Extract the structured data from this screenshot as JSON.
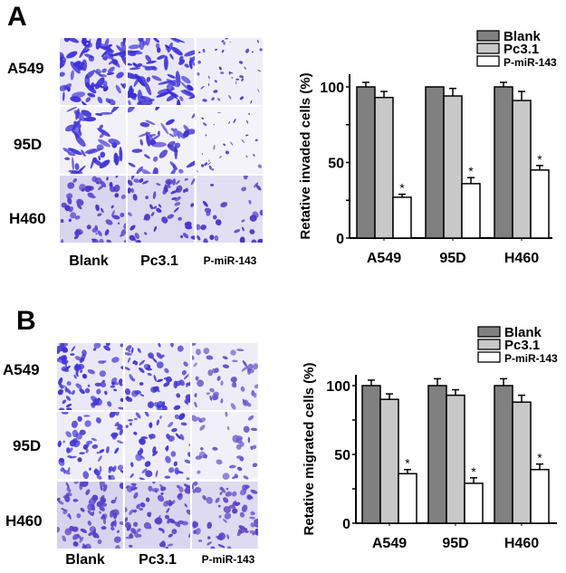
{
  "panels": [
    {
      "letter": "A",
      "row_labels": [
        "A549",
        "95D",
        "H460"
      ],
      "col_labels": [
        "Blank",
        "Pc3.1",
        "P-miR-143"
      ],
      "micrographs": [
        [
          {
            "bg": "#e9e7f6",
            "density": 0.85,
            "blob": "#3b2fd6",
            "shape": "elongated"
          },
          {
            "bg": "#e9e7f6",
            "density": 0.8,
            "blob": "#3b2fd6",
            "shape": "elongated"
          },
          {
            "bg": "#f0eef8",
            "density": 0.35,
            "blob": "#4a38c8",
            "shape": "small"
          }
        ],
        [
          {
            "bg": "#f2f1f8",
            "density": 0.5,
            "blob": "#4337d4",
            "shape": "elongated"
          },
          {
            "bg": "#f2f1f8",
            "density": 0.45,
            "blob": "#4337d4",
            "shape": "elongated"
          },
          {
            "bg": "#f4f3f9",
            "density": 0.25,
            "blob": "#4a3dd0",
            "shape": "small"
          }
        ],
        [
          {
            "bg": "#d9d6ef",
            "density": 0.55,
            "blob": "#4a32c8",
            "shape": "round"
          },
          {
            "bg": "#dcd9f0",
            "density": 0.5,
            "blob": "#4a32c8",
            "shape": "round"
          },
          {
            "bg": "#e2dff2",
            "density": 0.25,
            "blob": "#4a32c8",
            "shape": "round"
          }
        ]
      ]
    },
    {
      "letter": "B",
      "row_labels": [
        "A549",
        "95D",
        "H460"
      ],
      "col_labels": [
        "Blank",
        "Pc3.1",
        "P-miR-143"
      ],
      "micrographs": [
        [
          {
            "bg": "#eae8f6",
            "density": 0.75,
            "blob": "#4034d2",
            "shape": "round"
          },
          {
            "bg": "#eceaf7",
            "density": 0.6,
            "blob": "#4034d2",
            "shape": "round"
          },
          {
            "bg": "#eeecf7",
            "density": 0.4,
            "blob": "#6a55c8",
            "shape": "round"
          }
        ],
        [
          {
            "bg": "#efeef8",
            "density": 0.55,
            "blob": "#4337d4",
            "shape": "round"
          },
          {
            "bg": "#efeef8",
            "density": 0.45,
            "blob": "#4337d4",
            "shape": "round"
          },
          {
            "bg": "#f1f0f8",
            "density": 0.3,
            "blob": "#6a58cc",
            "shape": "round"
          }
        ],
        [
          {
            "bg": "#d8d4ef",
            "density": 0.7,
            "blob": "#5a40c8",
            "shape": "round"
          },
          {
            "bg": "#dad6ef",
            "density": 0.65,
            "blob": "#5a40c8",
            "shape": "round"
          },
          {
            "bg": "#dedaf0",
            "density": 0.55,
            "blob": "#5a40c8",
            "shape": "round"
          }
        ]
      ]
    }
  ],
  "chart_data": [
    {
      "type": "bar",
      "title": "",
      "xlabel": "",
      "ylabel": "Retative invaded cells (%)",
      "categories": [
        "A549",
        "95D",
        "H460"
      ],
      "ylim": [
        0,
        110
      ],
      "yticks": [
        0,
        50,
        100
      ],
      "legend_position": "top-right",
      "grid": false,
      "series": [
        {
          "name": "Blank",
          "color": "#808080",
          "values": [
            100,
            100,
            100
          ],
          "errors": [
            3,
            0,
            3
          ],
          "significant": [
            false,
            false,
            false
          ]
        },
        {
          "name": "Pc3.1",
          "color": "#c8c8c8",
          "values": [
            93,
            94,
            91
          ],
          "errors": [
            4,
            5,
            6
          ],
          "significant": [
            false,
            false,
            false
          ]
        },
        {
          "name": "P-miR-143",
          "color": "#ffffff",
          "values": [
            27,
            36,
            45
          ],
          "errors": [
            2,
            4,
            3
          ],
          "significant": [
            true,
            true,
            true
          ]
        }
      ],
      "significance_marker": "*"
    },
    {
      "type": "bar",
      "title": "",
      "xlabel": "",
      "ylabel": "Retative migrated cells (%)",
      "categories": [
        "A549",
        "95D",
        "H460"
      ],
      "ylim": [
        0,
        110
      ],
      "yticks": [
        0,
        50,
        100
      ],
      "legend_position": "top-right",
      "grid": false,
      "series": [
        {
          "name": "Blank",
          "color": "#808080",
          "values": [
            100,
            100,
            100
          ],
          "errors": [
            4,
            5,
            5
          ],
          "significant": [
            false,
            false,
            false
          ]
        },
        {
          "name": "Pc3.1",
          "color": "#c8c8c8",
          "values": [
            90,
            93,
            88
          ],
          "errors": [
            4,
            4,
            5
          ],
          "significant": [
            false,
            false,
            false
          ]
        },
        {
          "name": "P-miR-143",
          "color": "#ffffff",
          "values": [
            36,
            29,
            39
          ],
          "errors": [
            3,
            4,
            4
          ],
          "significant": [
            true,
            true,
            true
          ]
        }
      ],
      "significance_marker": "*"
    }
  ]
}
